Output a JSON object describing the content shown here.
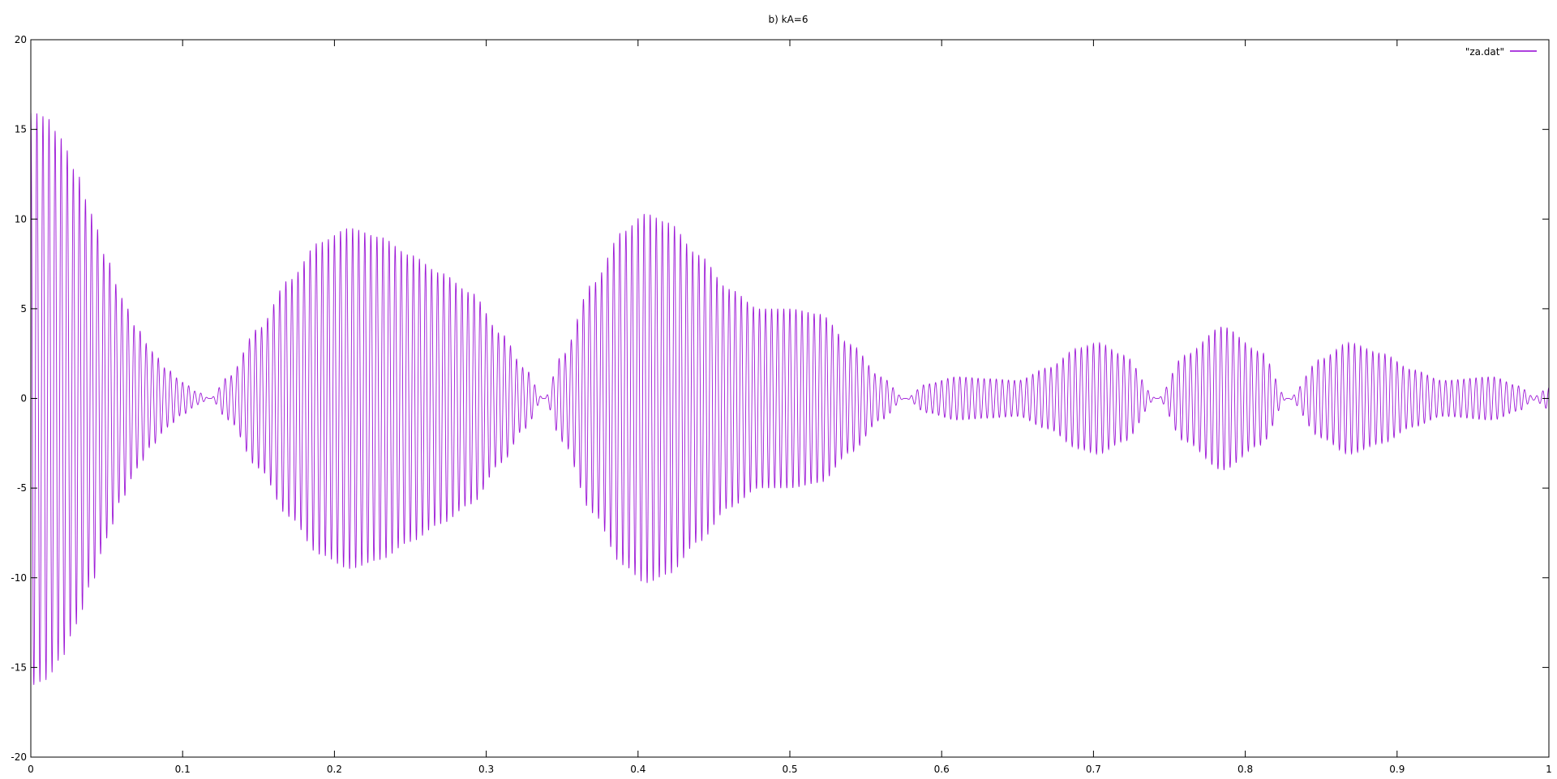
{
  "chart_data": {
    "type": "line",
    "title": "b) kA=6",
    "xlabel": "",
    "ylabel": "",
    "xlim": [
      0,
      1
    ],
    "ylim": [
      -20,
      20
    ],
    "x_ticks": [
      0,
      0.1,
      0.2,
      0.3,
      0.4,
      0.5,
      0.6,
      0.7,
      0.8,
      0.9,
      1
    ],
    "x_tick_labels": [
      "0",
      "0.1",
      "0.2",
      "0.3",
      "0.4",
      "0.5",
      "0.6",
      "0.7",
      "0.8",
      "0.9",
      "1"
    ],
    "y_ticks": [
      -20,
      -15,
      -10,
      -5,
      0,
      5,
      10,
      15,
      20
    ],
    "y_tick_labels": [
      "-20",
      "-15",
      "-10",
      "-5",
      "0",
      "5",
      "10",
      "15",
      "20"
    ],
    "grid": false,
    "legend": {
      "position": "top-right",
      "entries": [
        "\"za.dat\""
      ]
    },
    "series": [
      {
        "name": "\"za.dat\"",
        "color": "#9400d3",
        "description_type": "rapid oscillation with amplitude envelope",
        "oscillation_cycles": 250,
        "envelope": {
          "x": [
            0.0,
            0.01,
            0.02,
            0.03,
            0.04,
            0.05,
            0.06,
            0.07,
            0.08,
            0.09,
            0.1,
            0.11,
            0.118,
            0.13,
            0.15,
            0.17,
            0.19,
            0.21,
            0.23,
            0.25,
            0.27,
            0.29,
            0.31,
            0.325,
            0.338,
            0.35,
            0.37,
            0.39,
            0.405,
            0.42,
            0.44,
            0.46,
            0.48,
            0.5,
            0.52,
            0.54,
            0.56,
            0.576,
            0.59,
            0.61,
            0.63,
            0.65,
            0.67,
            0.69,
            0.703,
            0.72,
            0.742,
            0.76,
            0.785,
            0.81,
            0.828,
            0.85,
            0.868,
            0.89,
            0.91,
            0.93,
            0.963,
            0.98,
            0.99,
            1.0
          ],
          "amplitude": [
            16.0,
            15.7,
            14.5,
            12.6,
            10.3,
            7.8,
            5.6,
            3.9,
            2.6,
            1.6,
            0.9,
            0.35,
            0.0,
            1.2,
            3.9,
            6.6,
            8.7,
            9.5,
            9.0,
            8.0,
            7.0,
            5.9,
            3.6,
            1.7,
            0.0,
            2.4,
            6.4,
            9.3,
            10.3,
            9.8,
            8.0,
            6.1,
            5.0,
            5.0,
            4.7,
            3.0,
            1.2,
            0.0,
            0.8,
            1.2,
            1.1,
            1.0,
            1.7,
            2.8,
            3.1,
            2.4,
            0.0,
            2.4,
            4.0,
            2.6,
            0.0,
            2.2,
            3.1,
            2.5,
            1.6,
            1.0,
            1.2,
            0.7,
            0.1,
            0.6
          ]
        }
      }
    ]
  }
}
